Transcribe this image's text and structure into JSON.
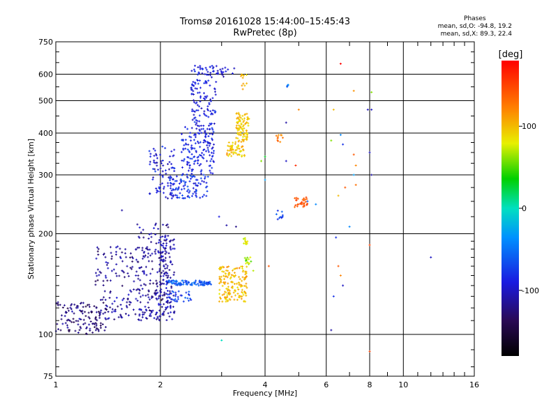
{
  "header": {
    "title_line1": "Tromsø 20161028 15:44:00–15:45:43",
    "title_line2": "RwPretec (8p)"
  },
  "phase_info": {
    "heading": "Phases",
    "line_o": "mean, sd,O:  -94.8, 19.2",
    "line_x": "mean, sd,X:  89.3, 22.4"
  },
  "colorbar": {
    "label": "[deg]",
    "tick_labels": [
      "100",
      "0",
      "-100"
    ],
    "tick_values": [
      100,
      0,
      -100
    ],
    "range": [
      -180,
      180
    ]
  },
  "chart_data": {
    "type": "scatter",
    "xlabel": "Frequency [MHz]",
    "ylabel": "Stationary phase Virtual Height [km]",
    "x_scale": "log",
    "y_scale": "log",
    "xlim": [
      1,
      16
    ],
    "ylim": [
      75,
      750
    ],
    "x_ticks": [
      1,
      2,
      4,
      6,
      8,
      10,
      16
    ],
    "y_ticks": [
      75,
      100,
      200,
      300,
      400,
      500,
      600,
      750
    ],
    "grid": true,
    "color_encoding": "phase in degrees (rainbow, -180 to 180)",
    "clusters": [
      {
        "x": [
          1.0,
          1.4
        ],
        "y": [
          100,
          125
        ],
        "phase": -125,
        "n": 120
      },
      {
        "x": [
          1.3,
          2.1
        ],
        "y": [
          110,
          185
        ],
        "phase": -115,
        "n": 240
      },
      {
        "x": [
          1.7,
          2.2
        ],
        "y": [
          110,
          215
        ],
        "phase": -110,
        "n": 140
      },
      {
        "x": [
          2.0,
          2.15
        ],
        "y": [
          115,
          200
        ],
        "phase": -110,
        "n": 50
      },
      {
        "x": [
          2.05,
          2.8
        ],
        "y": [
          140,
          145
        ],
        "phase": -60,
        "n": 90
      },
      {
        "x": [
          2.1,
          2.45
        ],
        "y": [
          125,
          135
        ],
        "phase": -75,
        "n": 30
      },
      {
        "x": [
          1.85,
          2.2
        ],
        "y": [
          255,
          365
        ],
        "phase": -95,
        "n": 80
      },
      {
        "x": [
          2.1,
          2.75
        ],
        "y": [
          255,
          300
        ],
        "phase": -80,
        "n": 100
      },
      {
        "x": [
          2.3,
          2.85
        ],
        "y": [
          300,
          420
        ],
        "phase": -85,
        "n": 150
      },
      {
        "x": [
          2.45,
          2.9
        ],
        "y": [
          420,
          640
        ],
        "phase": -90,
        "n": 130
      },
      {
        "x": [
          2.9,
          3.3
        ],
        "y": [
          590,
          630
        ],
        "phase": -100,
        "n": 18
      },
      {
        "x": [
          2.95,
          3.55
        ],
        "y": [
          125,
          160
        ],
        "phase": 100,
        "n": 160
      },
      {
        "x": [
          3.1,
          3.5
        ],
        "y": [
          340,
          380
        ],
        "phase": 100,
        "n": 60
      },
      {
        "x": [
          3.3,
          3.6
        ],
        "y": [
          380,
          460
        ],
        "phase": 95,
        "n": 90
      },
      {
        "x": [
          3.4,
          3.55
        ],
        "y": [
          540,
          610
        ],
        "phase": 100,
        "n": 12
      },
      {
        "x": [
          3.45,
          3.6
        ],
        "y": [
          180,
          195
        ],
        "phase": 80,
        "n": 12
      },
      {
        "x": [
          3.5,
          3.65
        ],
        "y": [
          160,
          170
        ],
        "phase": 60,
        "n": 14
      },
      {
        "x": [
          4.85,
          5.3
        ],
        "y": [
          240,
          258
        ],
        "phase": 140,
        "n": 30
      },
      {
        "x": [
          4.3,
          4.5
        ],
        "y": [
          220,
          235
        ],
        "phase": -70,
        "n": 10
      },
      {
        "x": [
          4.3,
          4.5
        ],
        "y": [
          375,
          395
        ],
        "phase": 120,
        "n": 10
      },
      {
        "x": [
          4.6,
          4.7
        ],
        "y": [
          548,
          558
        ],
        "phase": -50,
        "n": 4
      }
    ],
    "scattered_points": [
      {
        "x": 6.6,
        "y": 645,
        "phase": 180
      },
      {
        "x": 7.2,
        "y": 535,
        "phase": 115
      },
      {
        "x": 8.1,
        "y": 530,
        "phase": 60
      },
      {
        "x": 8.1,
        "y": 470,
        "phase": -100
      },
      {
        "x": 6.3,
        "y": 470,
        "phase": 100
      },
      {
        "x": 6.2,
        "y": 380,
        "phase": 60
      },
      {
        "x": 6.6,
        "y": 395,
        "phase": -40
      },
      {
        "x": 6.7,
        "y": 370,
        "phase": -80
      },
      {
        "x": 7.2,
        "y": 345,
        "phase": 140
      },
      {
        "x": 7.3,
        "y": 320,
        "phase": 120
      },
      {
        "x": 7.3,
        "y": 280,
        "phase": 130
      },
      {
        "x": 7.2,
        "y": 300,
        "phase": -30
      },
      {
        "x": 8.0,
        "y": 350,
        "phase": -100
      },
      {
        "x": 8.1,
        "y": 300,
        "phase": -110
      },
      {
        "x": 6.8,
        "y": 275,
        "phase": 140
      },
      {
        "x": 6.5,
        "y": 260,
        "phase": 100
      },
      {
        "x": 7.9,
        "y": 470,
        "phase": -100
      },
      {
        "x": 5.0,
        "y": 470,
        "phase": 120
      },
      {
        "x": 4.6,
        "y": 430,
        "phase": -110
      },
      {
        "x": 4.6,
        "y": 330,
        "phase": -100
      },
      {
        "x": 4.9,
        "y": 320,
        "phase": 160
      },
      {
        "x": 6.4,
        "y": 195,
        "phase": -80
      },
      {
        "x": 7.0,
        "y": 210,
        "phase": -40
      },
      {
        "x": 8.0,
        "y": 185,
        "phase": 150
      },
      {
        "x": 6.5,
        "y": 160,
        "phase": 140
      },
      {
        "x": 6.6,
        "y": 150,
        "phase": 120
      },
      {
        "x": 6.7,
        "y": 140,
        "phase": -100
      },
      {
        "x": 6.3,
        "y": 130,
        "phase": -80
      },
      {
        "x": 12.0,
        "y": 170,
        "phase": -100
      },
      {
        "x": 6.2,
        "y": 103,
        "phase": -110
      },
      {
        "x": 8.0,
        "y": 89,
        "phase": 150
      },
      {
        "x": 3.0,
        "y": 96,
        "phase": 0
      },
      {
        "x": 3.7,
        "y": 155,
        "phase": 70
      },
      {
        "x": 4.0,
        "y": 290,
        "phase": -30
      },
      {
        "x": 1.55,
        "y": 235,
        "phase": -110
      },
      {
        "x": 2.95,
        "y": 225,
        "phase": -90
      },
      {
        "x": 3.1,
        "y": 212,
        "phase": -110
      },
      {
        "x": 3.3,
        "y": 210,
        "phase": -120
      },
      {
        "x": 3.9,
        "y": 330,
        "phase": 60
      },
      {
        "x": 4.0,
        "y": 340,
        "phase": 30
      },
      {
        "x": 4.1,
        "y": 160,
        "phase": 140
      },
      {
        "x": 5.6,
        "y": 245,
        "phase": -40
      },
      {
        "x": 5.3,
        "y": 250,
        "phase": -60
      }
    ]
  }
}
